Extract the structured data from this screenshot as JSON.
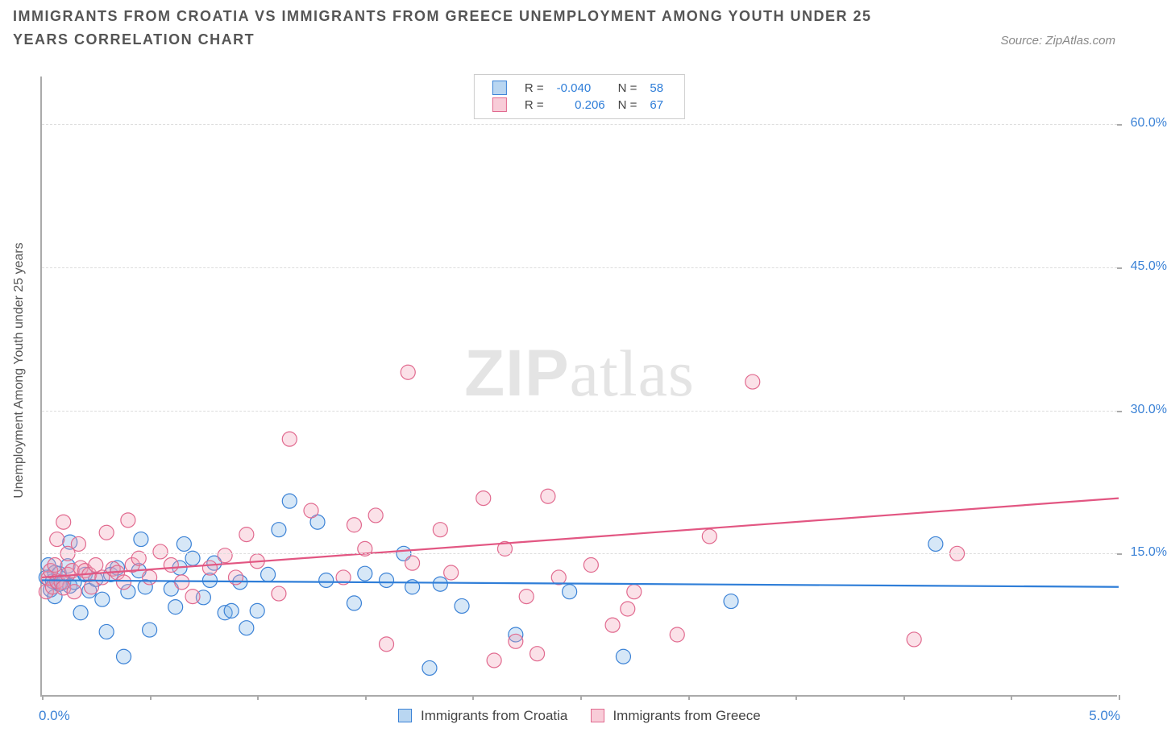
{
  "title": "IMMIGRANTS FROM CROATIA VS IMMIGRANTS FROM GREECE UNEMPLOYMENT AMONG YOUTH UNDER 25 YEARS CORRELATION CHART",
  "title_fontsize": 18,
  "title_color": "#555",
  "source": "Source: ZipAtlas.com",
  "source_color": "#888",
  "watermark_bold": "ZIP",
  "watermark_rest": "atlas",
  "ylabel": "Unemployment Among Youth under 25 years",
  "background_color": "#ffffff",
  "grid_color": "#dddddd",
  "axis_color": "#aaaaaa",
  "tick_label_color": "#3b82d6",
  "tick_label_fontsize": 16,
  "scatter": {
    "type": "scatter",
    "xlim": [
      0,
      5
    ],
    "ylim": [
      0,
      65
    ],
    "y_ticks": [
      15,
      30,
      45,
      60
    ],
    "y_tick_labels": [
      "15.0%",
      "30.0%",
      "45.0%",
      "60.0%"
    ],
    "x_labels": [
      "0.0%",
      "5.0%"
    ],
    "x_major_ticks": [
      0,
      0.5,
      1,
      1.5,
      2,
      2.5,
      3,
      3.5,
      4,
      4.5,
      5
    ],
    "marker": {
      "shape": "circle",
      "radius": 9,
      "fill_opacity": 0.32,
      "stroke_width": 1.2
    },
    "series": [
      {
        "name": "Immigrants from Croatia",
        "legend": "Immigrants from Croatia",
        "R_label": "R =",
        "R": "-0.040",
        "N_label": "N =",
        "N": "58",
        "color_fill": "#7fb4e6",
        "color_stroke": "#3b82d6",
        "swatch_bg": "rgba(127,180,230,0.55)",
        "swatch_border": "#3b82d6",
        "trend": {
          "x1": 0,
          "y1": 12.2,
          "x2": 5,
          "y2": 11.5,
          "color": "#2f7ed8"
        },
        "points": [
          [
            0.02,
            12.5
          ],
          [
            0.03,
            13.8
          ],
          [
            0.04,
            11.2
          ],
          [
            0.05,
            12.1
          ],
          [
            0.06,
            10.5
          ],
          [
            0.06,
            13.0
          ],
          [
            0.08,
            11.8
          ],
          [
            0.08,
            12.9
          ],
          [
            0.1,
            12.0
          ],
          [
            0.12,
            13.7
          ],
          [
            0.13,
            11.6
          ],
          [
            0.13,
            16.2
          ],
          [
            0.15,
            12.0
          ],
          [
            0.18,
            8.8
          ],
          [
            0.2,
            12.8
          ],
          [
            0.22,
            11.1
          ],
          [
            0.25,
            12.3
          ],
          [
            0.28,
            10.2
          ],
          [
            0.3,
            6.8
          ],
          [
            0.32,
            12.8
          ],
          [
            0.35,
            13.5
          ],
          [
            0.38,
            4.2
          ],
          [
            0.45,
            13.2
          ],
          [
            0.46,
            16.5
          ],
          [
            0.48,
            11.5
          ],
          [
            0.5,
            7.0
          ],
          [
            0.6,
            11.3
          ],
          [
            0.62,
            9.4
          ],
          [
            0.64,
            13.5
          ],
          [
            0.66,
            16.0
          ],
          [
            0.7,
            14.5
          ],
          [
            0.75,
            10.4
          ],
          [
            0.78,
            12.2
          ],
          [
            0.8,
            14.0
          ],
          [
            0.85,
            8.8
          ],
          [
            0.88,
            9.0
          ],
          [
            0.92,
            12.0
          ],
          [
            0.95,
            7.2
          ],
          [
            1.0,
            9.0
          ],
          [
            1.05,
            12.8
          ],
          [
            1.1,
            17.5
          ],
          [
            1.15,
            20.5
          ],
          [
            1.28,
            18.3
          ],
          [
            1.32,
            12.2
          ],
          [
            1.45,
            9.8
          ],
          [
            1.5,
            12.9
          ],
          [
            1.6,
            12.2
          ],
          [
            1.68,
            15.0
          ],
          [
            1.72,
            11.5
          ],
          [
            1.8,
            3.0
          ],
          [
            1.85,
            11.8
          ],
          [
            1.95,
            9.5
          ],
          [
            2.2,
            6.5
          ],
          [
            2.45,
            11.0
          ],
          [
            2.7,
            4.2
          ],
          [
            3.2,
            10.0
          ],
          [
            4.15,
            16.0
          ],
          [
            0.4,
            11.0
          ]
        ]
      },
      {
        "name": "Immigrants from Greece",
        "legend": "Immigrants from Greece",
        "R_label": "R =",
        "R": "0.206",
        "N_label": "N =",
        "N": "67",
        "color_fill": "#f2a3b8",
        "color_stroke": "#e16a8f",
        "swatch_bg": "rgba(242,163,184,0.55)",
        "swatch_border": "#e16a8f",
        "trend": {
          "x1": 0,
          "y1": 12.5,
          "x2": 5,
          "y2": 20.8,
          "color": "#e25682"
        },
        "points": [
          [
            0.02,
            11.0
          ],
          [
            0.03,
            12.4
          ],
          [
            0.04,
            13.2
          ],
          [
            0.05,
            11.5
          ],
          [
            0.06,
            13.8
          ],
          [
            0.07,
            12.1
          ],
          [
            0.07,
            16.5
          ],
          [
            0.09,
            12.0
          ],
          [
            0.1,
            18.3
          ],
          [
            0.1,
            11.4
          ],
          [
            0.12,
            12.8
          ],
          [
            0.12,
            15.0
          ],
          [
            0.14,
            13.2
          ],
          [
            0.15,
            11.0
          ],
          [
            0.17,
            16.0
          ],
          [
            0.18,
            13.5
          ],
          [
            0.2,
            13.2
          ],
          [
            0.22,
            12.8
          ],
          [
            0.23,
            11.5
          ],
          [
            0.25,
            13.8
          ],
          [
            0.28,
            12.5
          ],
          [
            0.3,
            17.2
          ],
          [
            0.33,
            13.4
          ],
          [
            0.35,
            13.0
          ],
          [
            0.38,
            12.0
          ],
          [
            0.42,
            13.8
          ],
          [
            0.45,
            14.5
          ],
          [
            0.5,
            12.5
          ],
          [
            0.55,
            15.2
          ],
          [
            0.6,
            13.8
          ],
          [
            0.65,
            12.0
          ],
          [
            0.7,
            10.5
          ],
          [
            0.78,
            13.5
          ],
          [
            0.85,
            14.8
          ],
          [
            0.9,
            12.5
          ],
          [
            0.95,
            17.0
          ],
          [
            1.0,
            14.2
          ],
          [
            1.1,
            10.8
          ],
          [
            1.15,
            27.0
          ],
          [
            1.25,
            19.5
          ],
          [
            1.4,
            12.5
          ],
          [
            1.45,
            18.0
          ],
          [
            1.5,
            15.5
          ],
          [
            1.55,
            19.0
          ],
          [
            1.6,
            5.5
          ],
          [
            1.7,
            34.0
          ],
          [
            1.72,
            14.0
          ],
          [
            1.85,
            17.5
          ],
          [
            1.9,
            13.0
          ],
          [
            2.05,
            20.8
          ],
          [
            2.1,
            3.8
          ],
          [
            2.15,
            15.5
          ],
          [
            2.2,
            5.8
          ],
          [
            2.25,
            10.5
          ],
          [
            2.3,
            4.5
          ],
          [
            2.35,
            21.0
          ],
          [
            2.4,
            12.5
          ],
          [
            2.55,
            13.8
          ],
          [
            2.65,
            7.5
          ],
          [
            2.72,
            9.2
          ],
          [
            2.75,
            11.0
          ],
          [
            2.95,
            6.5
          ],
          [
            3.1,
            16.8
          ],
          [
            3.3,
            33.0
          ],
          [
            4.05,
            6.0
          ],
          [
            4.25,
            15.0
          ],
          [
            0.4,
            18.5
          ]
        ]
      }
    ]
  }
}
